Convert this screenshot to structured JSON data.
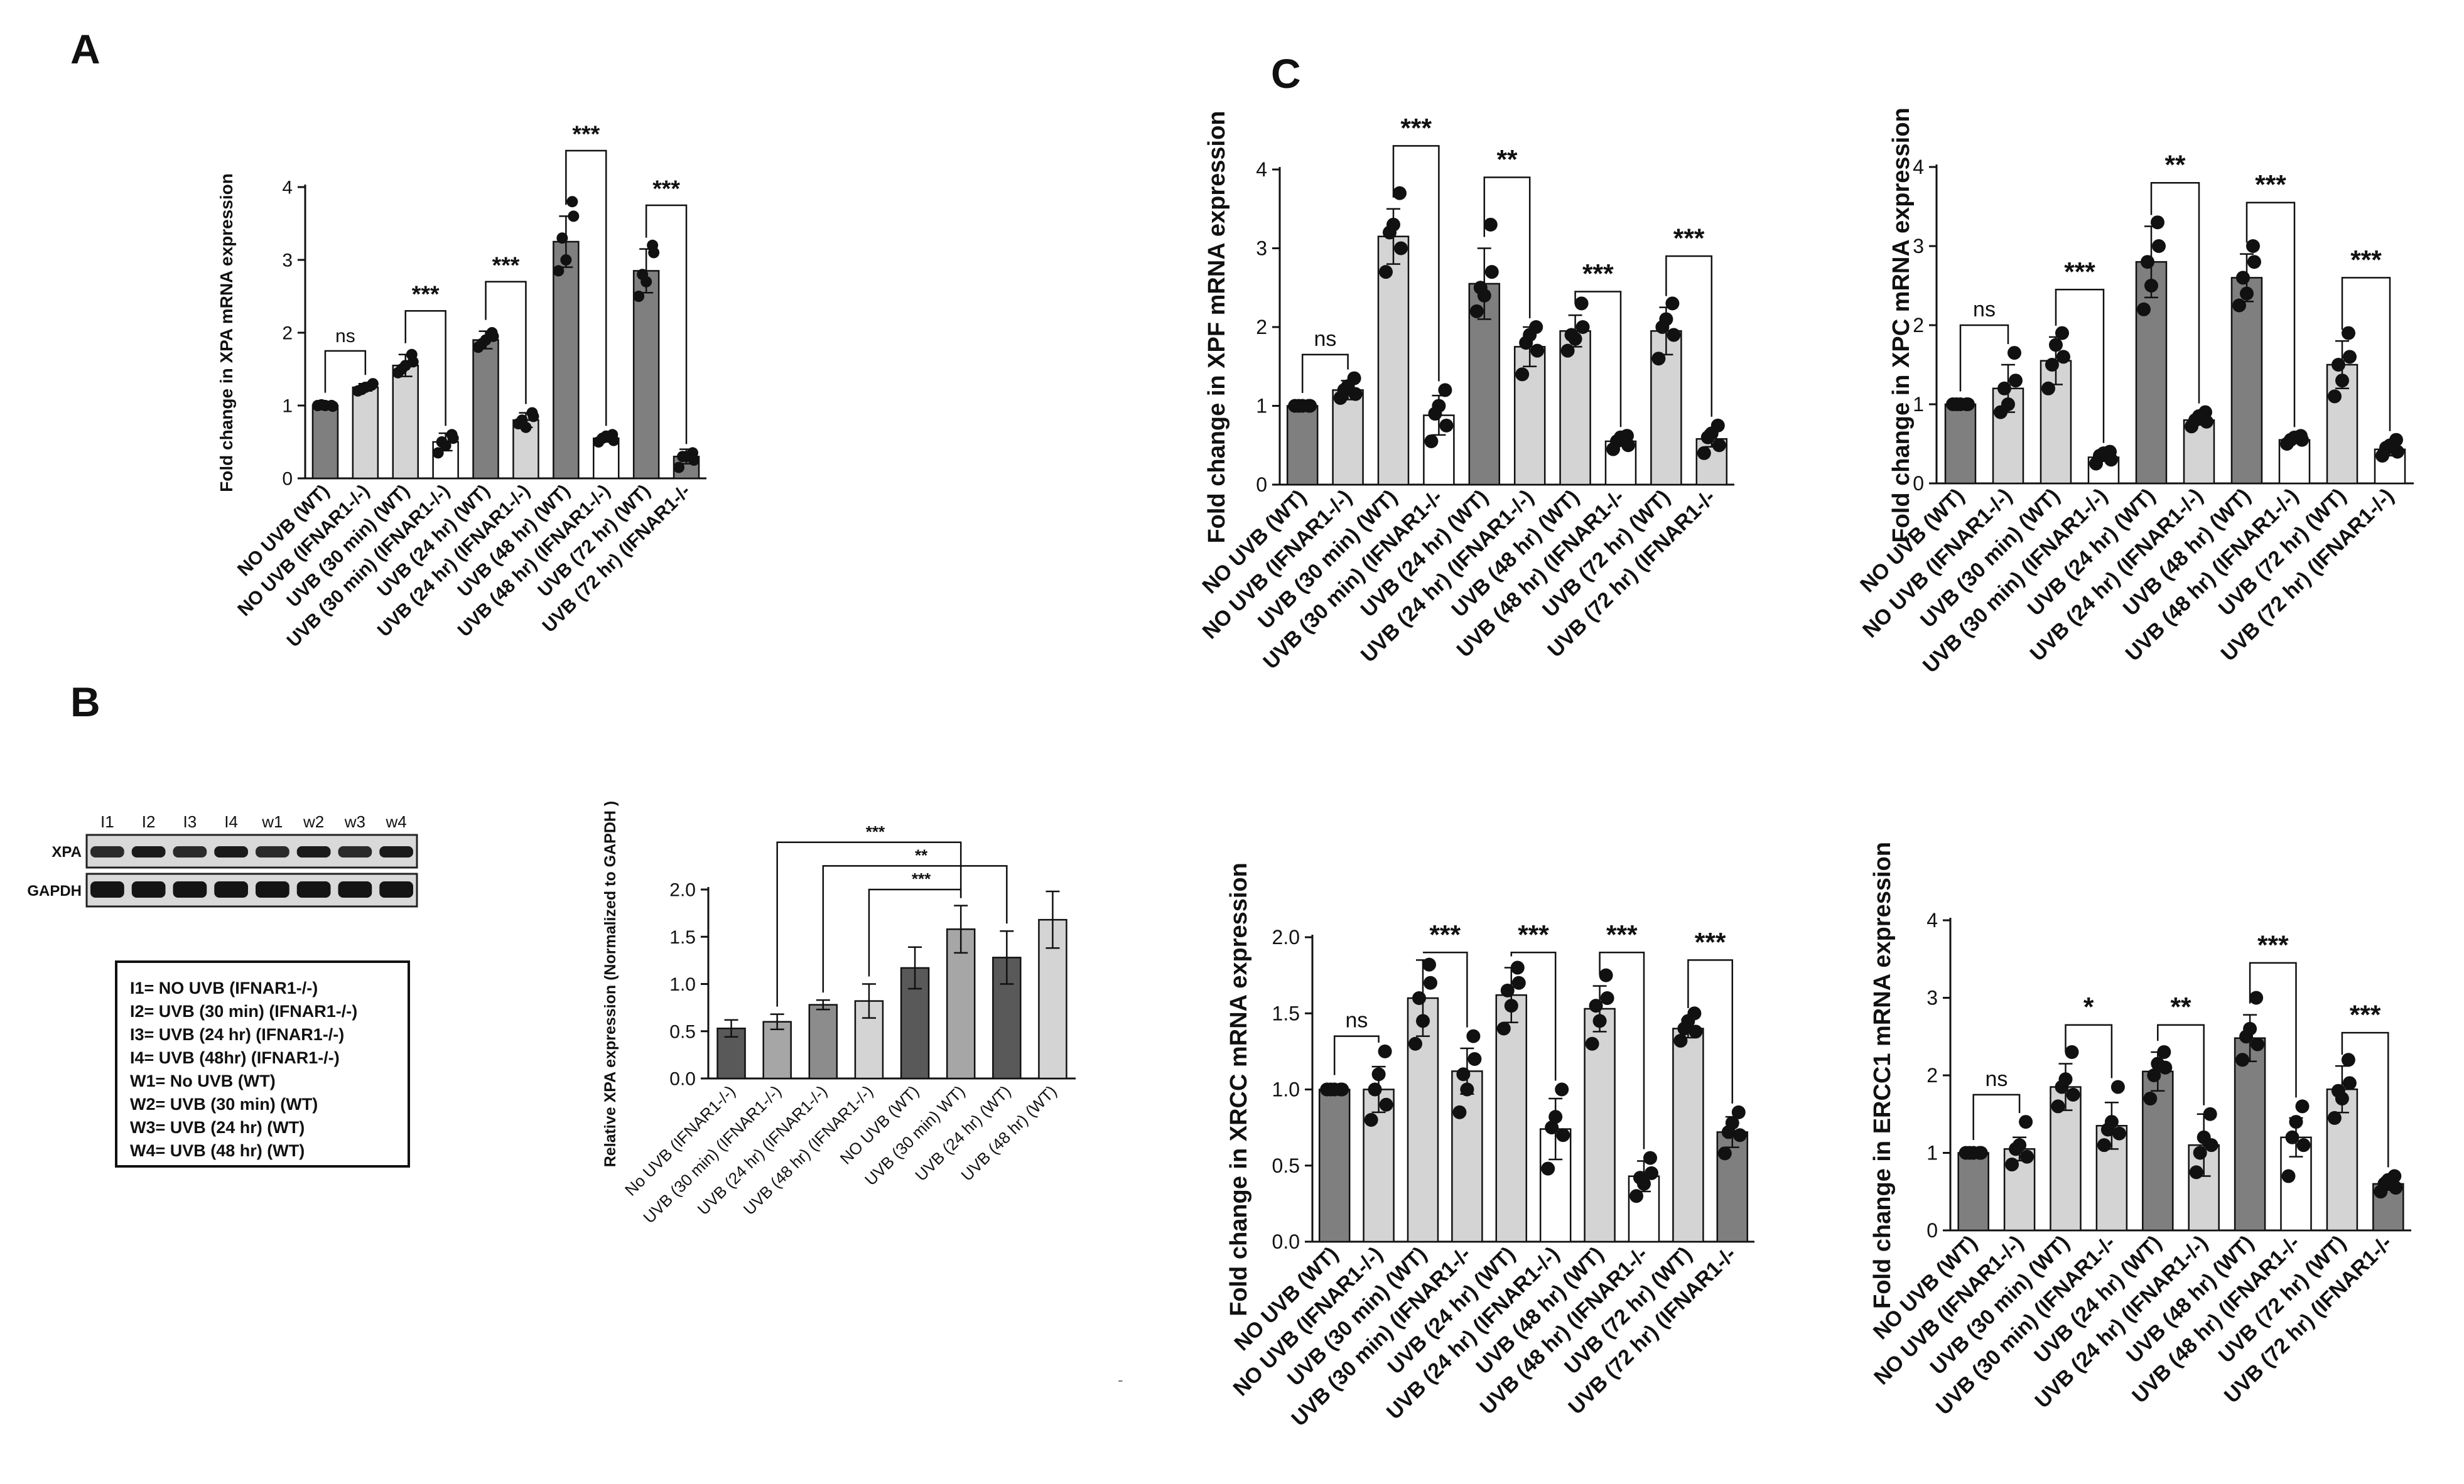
{
  "panel_letters": {
    "a": "A",
    "b": "B",
    "c": "C"
  },
  "western_blot": {
    "lane_labels": [
      "I1",
      "I2",
      "I3",
      "I4",
      "w1",
      "w2",
      "w3",
      "w4"
    ],
    "row_labels": [
      "XPA",
      "GAPDH"
    ]
  },
  "legend": {
    "items": [
      "I1= NO UVB (IFNAR1-/-)",
      "I2= UVB (30 min) (IFNAR1-/-)",
      "I3= UVB (24 hr) (IFNAR1-/-)",
      "I4= UVB (48hr) (IFNAR1-/-)",
      "W1= No UVB (WT)",
      "W2= UVB (30 min) (WT)",
      "W3= UVB (24 hr) (WT)",
      "W4= UVB (48 hr) (WT)"
    ]
  },
  "colors": {
    "dark": "#7f7f7f",
    "light": "#d4d4d4",
    "white": "#ffffff",
    "dark_b": "#595959",
    "mid_b": "#8c8c8c",
    "axis": "#111111"
  },
  "chart_data": [
    {
      "id": "xpa",
      "type": "bar",
      "ylabel": "Fold change in XPA mRNA expression",
      "categories": [
        "NO UVB (WT)",
        "NO UVB (IFNAR1-/-)",
        "UVB (30 min) (WT)",
        "UVB (30 min) (IFNAR1-/-)",
        "UVB (24 hr) (WT)",
        "UVB (24 hr) (IFNAR1-/-)",
        "UVB (48 hr) (WT)",
        "UVB (48 hr) (IFNAR1-/-)",
        "UVB (72 hr) (WT)",
        "UVB (72 hr) (IFNAR1-/-"
      ],
      "values": [
        1.0,
        1.25,
        1.55,
        0.5,
        1.9,
        0.8,
        3.25,
        0.55,
        2.85,
        0.3
      ],
      "errors": [
        0.02,
        0.05,
        0.15,
        0.12,
        0.12,
        0.1,
        0.35,
        0.05,
        0.3,
        0.1
      ],
      "points": [
        [
          1.0,
          1.0,
          1.01,
          0.99,
          1.0
        ],
        [
          1.2,
          1.28,
          1.22,
          1.3,
          1.25
        ],
        [
          1.45,
          1.7,
          1.5,
          1.6,
          1.55
        ],
        [
          0.35,
          0.6,
          0.5,
          0.55,
          0.45
        ],
        [
          1.8,
          2.0,
          1.85,
          1.95,
          1.9
        ],
        [
          0.75,
          0.9,
          0.8,
          0.85,
          0.7
        ],
        [
          2.85,
          3.8,
          3.3,
          3.6,
          3.0
        ],
        [
          0.5,
          0.6,
          0.55,
          0.52,
          0.58
        ],
        [
          2.5,
          3.2,
          2.8,
          3.1,
          2.7
        ],
        [
          0.15,
          0.35,
          0.3,
          0.25,
          0.3
        ]
      ],
      "fills": [
        "dark",
        "light",
        "light",
        "white",
        "dark",
        "light",
        "dark",
        "white",
        "dark",
        "dark"
      ],
      "ylim": [
        0,
        4
      ],
      "yticks": [
        "0",
        "1",
        "2",
        "3",
        "4"
      ],
      "sig": [
        {
          "a": 0,
          "b": 1,
          "label": "ns",
          "y": 1.75
        },
        {
          "a": 2,
          "b": 3,
          "label": "***",
          "y": 2.3
        },
        {
          "a": 4,
          "b": 5,
          "label": "***",
          "y": 2.7
        },
        {
          "a": 6,
          "b": 7,
          "label": "***",
          "y": 4.5
        },
        {
          "a": 8,
          "b": 9,
          "label": "***",
          "y": 3.75
        }
      ]
    },
    {
      "id": "xpf",
      "type": "bar",
      "ylabel": "Fold change in XPF mRNA expression",
      "categories": [
        "NO UVB (WT)",
        "NO UVB (IFNAR1-/-)",
        "UVB (30 min) (WT)",
        "UVB (30 min) (IFNAR1-/-",
        "UVB (24 hr) (WT)",
        "UVB (24 hr) (IFNAR1-/-)",
        "UVB (48 hr) (WT)",
        "UVB (48 hr) (IFNAR1-/-",
        "UVB (72 hr) (WT)",
        "UVB (72 hr) (IFNAR1-/-"
      ],
      "values": [
        1.0,
        1.2,
        3.15,
        0.88,
        2.55,
        1.75,
        1.95,
        0.55,
        1.95,
        0.58
      ],
      "errors": [
        0.02,
        0.12,
        0.35,
        0.25,
        0.45,
        0.25,
        0.2,
        0.06,
        0.3,
        0.1
      ],
      "points": [
        [
          1.0,
          1.0,
          1.0,
          1.0,
          1.0
        ],
        [
          1.1,
          1.35,
          1.2,
          1.15,
          1.25
        ],
        [
          2.7,
          3.7,
          3.2,
          3.0,
          3.3
        ],
        [
          0.55,
          1.2,
          0.9,
          0.75,
          1.0
        ],
        [
          2.2,
          3.3,
          2.5,
          2.7,
          2.4
        ],
        [
          1.4,
          2.0,
          1.8,
          1.7,
          1.9
        ],
        [
          1.7,
          2.3,
          1.9,
          2.0,
          1.85
        ],
        [
          0.45,
          0.62,
          0.55,
          0.5,
          0.6
        ],
        [
          1.6,
          2.3,
          2.0,
          1.9,
          2.1
        ],
        [
          0.4,
          0.75,
          0.6,
          0.5,
          0.65
        ]
      ],
      "fills": [
        "dark",
        "light",
        "light",
        "white",
        "dark",
        "light",
        "light",
        "white",
        "light",
        "light"
      ],
      "ylim": [
        0,
        4
      ],
      "yticks": [
        "0",
        "1",
        "2",
        "3",
        "4"
      ],
      "sig": [
        {
          "a": 0,
          "b": 1,
          "label": "ns",
          "y": 1.65
        },
        {
          "a": 2,
          "b": 3,
          "label": "***",
          "y": 4.3
        },
        {
          "a": 4,
          "b": 5,
          "label": "**",
          "y": 3.9
        },
        {
          "a": 6,
          "b": 7,
          "label": "***",
          "y": 2.45
        },
        {
          "a": 8,
          "b": 9,
          "label": "***",
          "y": 2.9
        }
      ]
    },
    {
      "id": "xpc",
      "type": "bar",
      "ylabel": "Fold change in XPC mRNA expression",
      "categories": [
        "NO UVB (WT)",
        "NO UVB (IFNAR1-/-)",
        "UVB (30 min) (WT)",
        "UVB (30 min) (IFNAR1-/-)",
        "UVB (24 hr) (WT)",
        "UVB (24 hr) (IFNAR1-/-)",
        "UVB (48 hr) (WT)",
        "UVB (48 hr) (IFNAR1-/-)",
        "UVB (72 hr) (WT)",
        "UVB (72 hr) (IFNAR1-/-)"
      ],
      "values": [
        1.0,
        1.2,
        1.55,
        0.33,
        2.8,
        0.8,
        2.6,
        0.55,
        1.5,
        0.43
      ],
      "errors": [
        0.02,
        0.3,
        0.3,
        0.05,
        0.45,
        0.06,
        0.3,
        0.04,
        0.3,
        0.08
      ],
      "points": [
        [
          1.0,
          1.0,
          1.0,
          1.0,
          1.0
        ],
        [
          0.9,
          1.65,
          1.2,
          1.3,
          1.0
        ],
        [
          1.2,
          1.9,
          1.5,
          1.6,
          1.75
        ],
        [
          0.25,
          0.4,
          0.35,
          0.3,
          0.38
        ],
        [
          2.2,
          3.3,
          2.8,
          3.0,
          2.5
        ],
        [
          0.72,
          0.9,
          0.8,
          0.78,
          0.85
        ],
        [
          2.25,
          3.0,
          2.6,
          2.8,
          2.4
        ],
        [
          0.5,
          0.6,
          0.55,
          0.55,
          0.58
        ],
        [
          1.1,
          1.9,
          1.5,
          1.6,
          1.3
        ],
        [
          0.35,
          0.55,
          0.45,
          0.4,
          0.48
        ]
      ],
      "fills": [
        "dark",
        "light",
        "light",
        "white",
        "dark",
        "light",
        "dark",
        "white",
        "light",
        "white"
      ],
      "ylim": [
        0,
        4
      ],
      "yticks": [
        "0",
        "1",
        "2",
        "3",
        "4"
      ],
      "sig": [
        {
          "a": 0,
          "b": 1,
          "label": "ns",
          "y": 2.0
        },
        {
          "a": 2,
          "b": 3,
          "label": "***",
          "y": 2.45
        },
        {
          "a": 4,
          "b": 5,
          "label": "**",
          "y": 3.8
        },
        {
          "a": 6,
          "b": 7,
          "label": "***",
          "y": 3.55
        },
        {
          "a": 8,
          "b": 9,
          "label": "***",
          "y": 2.6
        }
      ]
    },
    {
      "id": "xpa_wb",
      "type": "bar",
      "ylabel": "Relative XPA expression (Normalized to GAPDH )",
      "categories": [
        "No UVB (IFNAR1-/-)",
        "UVB (30 min) (IFNAR1-/-)",
        "UVB (24 hr) (IFNAR1-/-)",
        "UVB (48 hr) (IFNAR1-/-)",
        "NO UVB (WT)",
        "UVB (30 min) WT)",
        "UVB (24 hr) (WT)",
        "UVB (48 hr) (WT)"
      ],
      "values": [
        0.53,
        0.6,
        0.78,
        0.82,
        1.17,
        1.58,
        1.28,
        1.68
      ],
      "errors": [
        0.09,
        0.08,
        0.05,
        0.18,
        0.22,
        0.25,
        0.28,
        0.3
      ],
      "fills": [
        "#595959",
        "#a6a6a6",
        "#8c8c8c",
        "#d4d4d4",
        "#595959",
        "#a6a6a6",
        "#595959",
        "#d4d4d4"
      ],
      "ylim": [
        0,
        2
      ],
      "yticks": [
        "0.0",
        "0.5",
        "1.0",
        "1.5",
        "2.0"
      ],
      "brackets": [
        {
          "a": 1,
          "b": 5,
          "label": "***",
          "y": 2.5
        },
        {
          "a": 2,
          "b": 6,
          "label": "**",
          "y": 2.25
        },
        {
          "a": 3,
          "b": 5,
          "label": "***",
          "y": 2.0
        }
      ]
    },
    {
      "id": "xrcc",
      "type": "bar",
      "ylabel": "Fold change in XRCC mRNA expression",
      "categories": [
        "NO UVB (WT)",
        "NO UVB (IFNAR1-/-)",
        "UVB (30 min) (WT)",
        "UVB (30 min) (IFNAR1-/-",
        "UVB (24 hr) (WT)",
        "UVB (24 hr) (IFNAR1-/-)",
        "UVB (48 hr) (WT)",
        "UVB (48 hr) (IFNAR1-/-",
        "UVB (72 hr) (WT)",
        "UVB (72 hr) (IFNAR1-/-"
      ],
      "values": [
        1.0,
        1.0,
        1.6,
        1.12,
        1.62,
        0.74,
        1.53,
        0.43,
        1.4,
        0.72
      ],
      "errors": [
        0.02,
        0.15,
        0.25,
        0.15,
        0.18,
        0.2,
        0.15,
        0.1,
        0.06,
        0.1
      ],
      "points": [
        [
          1.0,
          1.0,
          1.0,
          1.0,
          1.0
        ],
        [
          0.8,
          1.25,
          1.0,
          0.9,
          1.1
        ],
        [
          1.3,
          1.82,
          1.6,
          1.7,
          1.45
        ],
        [
          0.85,
          1.35,
          1.1,
          1.2,
          1.0
        ],
        [
          1.4,
          1.8,
          1.65,
          1.7,
          1.55
        ],
        [
          0.48,
          1.0,
          0.75,
          0.7,
          0.82
        ],
        [
          1.3,
          1.75,
          1.55,
          1.6,
          1.45
        ],
        [
          0.3,
          0.55,
          0.42,
          0.45,
          0.38
        ],
        [
          1.32,
          1.5,
          1.4,
          1.38,
          1.45
        ],
        [
          0.58,
          0.85,
          0.72,
          0.7,
          0.78
        ]
      ],
      "fills": [
        "dark",
        "light",
        "light",
        "light",
        "light",
        "white",
        "light",
        "white",
        "light",
        "dark"
      ],
      "ylim": [
        0,
        2
      ],
      "yticks": [
        "0.0",
        "0.5",
        "1.0",
        "1.5",
        "2.0"
      ],
      "sig": [
        {
          "a": 0,
          "b": 1,
          "label": "ns",
          "y": 1.35
        },
        {
          "a": 2,
          "b": 3,
          "label": "***",
          "y": 1.9
        },
        {
          "a": 4,
          "b": 5,
          "label": "***",
          "y": 1.9
        },
        {
          "a": 6,
          "b": 7,
          "label": "***",
          "y": 1.9
        },
        {
          "a": 8,
          "b": 9,
          "label": "***",
          "y": 1.85
        }
      ]
    },
    {
      "id": "ercc1",
      "type": "bar",
      "ylabel": "Fold change in ERCC1 mRNA expression",
      "categories": [
        "NO UVB (WT)",
        "NO UVB (IFNAR1-/-)",
        "UVB (30 min) (WT)",
        "UVB (30 min) (IFNAR1-/-",
        "UVB (24 hr) (WT)",
        "UVB (24 hr) (IFNAR1-/-)",
        "UVB (48 hr) (WT)",
        "UVB (48 hr) (IFNAR1-/-",
        "UVB (72 hr) (WT)",
        "UVB (72 hr) (IFNAR1-/-"
      ],
      "values": [
        1.0,
        1.05,
        1.85,
        1.35,
        2.05,
        1.1,
        2.48,
        1.2,
        1.82,
        0.6
      ],
      "errors": [
        0.02,
        0.15,
        0.3,
        0.3,
        0.25,
        0.4,
        0.3,
        0.25,
        0.3,
        0.08
      ],
      "points": [
        [
          1.0,
          1.0,
          1.0,
          1.0,
          1.0
        ],
        [
          0.85,
          1.4,
          1.05,
          0.95,
          1.1
        ],
        [
          1.6,
          2.3,
          1.85,
          1.75,
          1.95
        ],
        [
          1.1,
          1.85,
          1.3,
          1.25,
          1.4
        ],
        [
          1.7,
          2.3,
          2.0,
          2.1,
          2.15
        ],
        [
          0.75,
          1.5,
          1.0,
          1.1,
          1.2
        ],
        [
          2.2,
          3.0,
          2.5,
          2.4,
          2.6
        ],
        [
          0.7,
          1.6,
          1.2,
          1.1,
          1.4
        ],
        [
          1.45,
          2.2,
          1.8,
          1.9,
          1.7
        ],
        [
          0.5,
          0.7,
          0.6,
          0.55,
          0.65
        ]
      ],
      "fills": [
        "dark",
        "light",
        "light",
        "light",
        "dark",
        "light",
        "dark",
        "white",
        "light",
        "dark"
      ],
      "ylim": [
        0,
        4
      ],
      "yticks": [
        "0",
        "1",
        "2",
        "3",
        "4"
      ],
      "sig": [
        {
          "a": 0,
          "b": 1,
          "label": "ns",
          "y": 1.75
        },
        {
          "a": 2,
          "b": 3,
          "label": "*",
          "y": 2.65
        },
        {
          "a": 4,
          "b": 5,
          "label": "**",
          "y": 2.65
        },
        {
          "a": 6,
          "b": 7,
          "label": "***",
          "y": 3.45
        },
        {
          "a": 8,
          "b": 9,
          "label": "***",
          "y": 2.55
        }
      ]
    }
  ]
}
